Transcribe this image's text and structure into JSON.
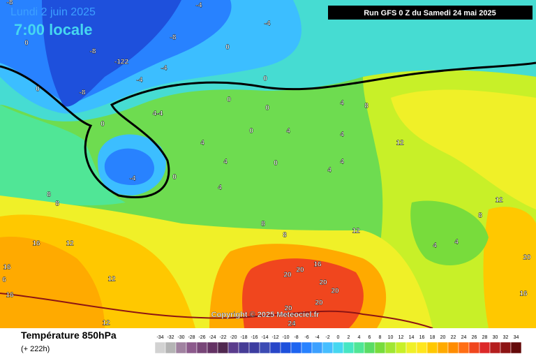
{
  "header": {
    "date": "Lundi 2 juin 2025",
    "time": "7:00 locale",
    "run": "Run GFS 0 Z du Samedi 24 mai 2025"
  },
  "copyright": "Copyright © 2025 Meteociel.fr",
  "footer": {
    "title": "Température 850hPa",
    "lead": "(+ 222h)"
  },
  "legend": {
    "values": [
      -34,
      -32,
      -30,
      -28,
      -26,
      -24,
      -22,
      -20,
      -18,
      -16,
      -14,
      -12,
      -10,
      -8,
      -6,
      -4,
      -2,
      0,
      2,
      4,
      6,
      8,
      10,
      12,
      14,
      16,
      18,
      20,
      22,
      24,
      26,
      28,
      30,
      32,
      34
    ],
    "colors": [
      "#d2d2d2",
      "#b4b4b4",
      "#a082a0",
      "#8c5a8c",
      "#784678",
      "#643264",
      "#502850",
      "#5a3c8c",
      "#463c96",
      "#3c3ca0",
      "#3c4bb4",
      "#2846c8",
      "#1e50dc",
      "#1e64f0",
      "#2882ff",
      "#3ca0ff",
      "#46beff",
      "#46d7f0",
      "#46e6c3",
      "#50e696",
      "#5adc64",
      "#78dc3c",
      "#a0e632",
      "#c8f028",
      "#f0f028",
      "#ffe61e",
      "#ffc800",
      "#ffaa00",
      "#ff8c00",
      "#ff6e14",
      "#f0461e",
      "#dc2828",
      "#b41e1e",
      "#8c1414",
      "#640a0a"
    ]
  },
  "map_labels": [
    "-8",
    "-4",
    "-4",
    "-8",
    "-8",
    "0",
    "0",
    "-122",
    "-4",
    "-4",
    "-8",
    "0",
    "0",
    "0",
    "0",
    "4-4",
    "0",
    "0",
    "4",
    "8",
    "4",
    "4",
    "12",
    "4",
    "4",
    "0",
    "4",
    "4",
    "-4",
    "0",
    "4",
    "8",
    "8",
    "8",
    "8",
    "12",
    "12",
    "16",
    "12",
    "16",
    "6",
    "12",
    "16",
    "16",
    "20",
    "20",
    "20",
    "20",
    "20",
    "20",
    "24",
    "12",
    "16",
    "20",
    "4",
    "4",
    "8"
  ]
}
